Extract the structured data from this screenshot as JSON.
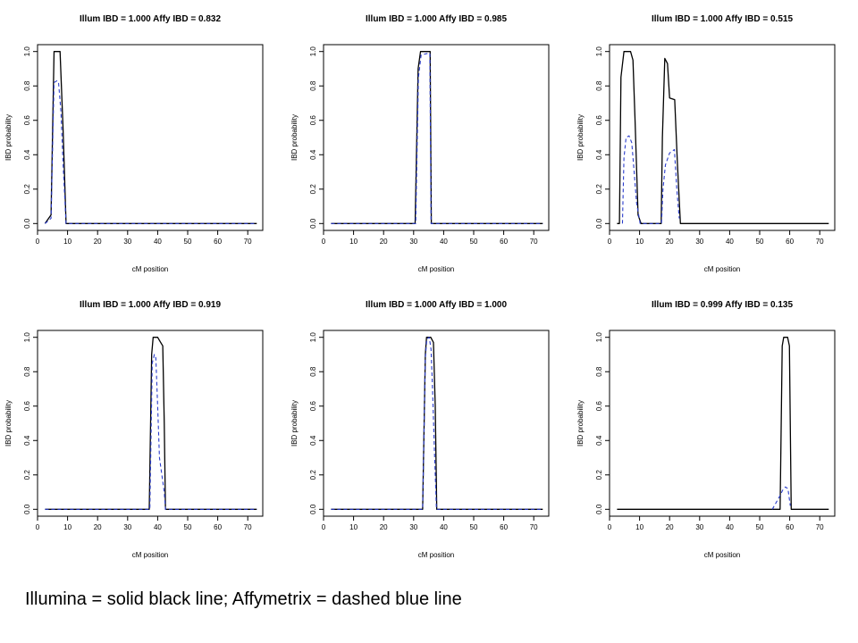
{
  "chart_data": [
    {
      "type": "line",
      "title": "Illum IBD = 1.000   Affy IBD = 0.832",
      "xlabel": "cM position",
      "ylabel": "IBD probability",
      "xlim": [
        0,
        75
      ],
      "ylim": [
        0,
        1
      ],
      "xticks": [
        "0",
        "10",
        "20",
        "30",
        "40",
        "50",
        "60",
        "70"
      ],
      "yticks": [
        "0.0",
        "0.2",
        "0.4",
        "0.6",
        "0.8",
        "1.0"
      ],
      "series": [
        {
          "style": "solid",
          "color": "#000000",
          "x": [
            2.5,
            4.5,
            5.5,
            6.5,
            7.5,
            8.5,
            9.5,
            10.5,
            73
          ],
          "y": [
            0,
            0.05,
            1.0,
            1.0,
            1.0,
            0.55,
            0,
            0,
            0
          ]
        },
        {
          "style": "dashed",
          "color": "#2a3ccc",
          "x": [
            2.5,
            4.5,
            5.5,
            6.5,
            7.0,
            7.8,
            8.5,
            9.5,
            10.5,
            73
          ],
          "y": [
            0,
            0.03,
            0.82,
            0.83,
            0.82,
            0.65,
            0.35,
            0,
            0,
            0
          ]
        }
      ]
    },
    {
      "type": "line",
      "title": "Illum IBD = 1.000   Affy IBD = 0.985",
      "xlabel": "cM position",
      "ylabel": "IBD probability",
      "xlim": [
        0,
        75
      ],
      "ylim": [
        0,
        1
      ],
      "xticks": [
        "0",
        "10",
        "20",
        "30",
        "40",
        "50",
        "60",
        "70"
      ],
      "yticks": [
        "0.0",
        "0.2",
        "0.4",
        "0.6",
        "0.8",
        "1.0"
      ],
      "series": [
        {
          "style": "solid",
          "color": "#000000",
          "x": [
            2.5,
            30.5,
            31.5,
            32.3,
            34.8,
            35.5,
            35.9,
            73
          ],
          "y": [
            0,
            0,
            0.9,
            1.0,
            1.0,
            1.0,
            0,
            0
          ]
        },
        {
          "style": "dashed",
          "color": "#2a3ccc",
          "x": [
            2.5,
            30.7,
            31.6,
            32.5,
            34.8,
            35.4,
            35.8,
            73
          ],
          "y": [
            0,
            0,
            0.85,
            0.98,
            0.99,
            0.99,
            0,
            0
          ]
        }
      ]
    },
    {
      "type": "line",
      "title": "Illum IBD = 1.000   Affy IBD = 0.515",
      "xlabel": "cM position",
      "ylabel": "IBD probability",
      "xlim": [
        0,
        75
      ],
      "ylim": [
        0,
        1
      ],
      "xticks": [
        "0",
        "10",
        "20",
        "30",
        "40",
        "50",
        "60",
        "70"
      ],
      "yticks": [
        "0.0",
        "0.2",
        "0.4",
        "0.6",
        "0.8",
        "1.0"
      ],
      "series": [
        {
          "style": "solid",
          "color": "#000000",
          "x": [
            2.5,
            3.3,
            3.8,
            4.8,
            7.0,
            7.8,
            8.5,
            9.5,
            10.5,
            17.2,
            17.6,
            18.4,
            19.3,
            20.0,
            21.7,
            22.6,
            23.6,
            73
          ],
          "y": [
            0,
            0,
            0.85,
            1.0,
            1.0,
            0.95,
            0.6,
            0.05,
            0,
            0,
            0.5,
            0.96,
            0.93,
            0.73,
            0.72,
            0.35,
            0,
            0
          ]
        },
        {
          "style": "dashed",
          "color": "#2a3ccc",
          "x": [
            4.3,
            4.8,
            5.5,
            6.5,
            7.4,
            8.2,
            9.0,
            10.2,
            17.3,
            17.8,
            18.6,
            20.0,
            21.6,
            22.4,
            23.2
          ],
          "y": [
            0,
            0.38,
            0.5,
            0.51,
            0.47,
            0.3,
            0.12,
            0,
            0,
            0.2,
            0.34,
            0.41,
            0.43,
            0.2,
            0.03
          ]
        }
      ]
    },
    {
      "type": "line",
      "title": "Illum IBD = 1.000   Affy IBD = 0.919",
      "xlabel": "cM position",
      "ylabel": "IBD probability",
      "xlim": [
        0,
        75
      ],
      "ylim": [
        0,
        1
      ],
      "xticks": [
        "0",
        "10",
        "20",
        "30",
        "40",
        "50",
        "60",
        "70"
      ],
      "yticks": [
        "0.0",
        "0.2",
        "0.4",
        "0.6",
        "0.8",
        "1.0"
      ],
      "series": [
        {
          "style": "solid",
          "color": "#000000",
          "x": [
            2.5,
            37.2,
            38.0,
            38.5,
            40.0,
            41.0,
            41.7,
            42.2,
            42.6,
            73
          ],
          "y": [
            0,
            0,
            0.9,
            1.0,
            1.0,
            0.97,
            0.95,
            0.5,
            0,
            0
          ]
        },
        {
          "style": "dashed",
          "color": "#2a3ccc",
          "x": [
            2.5,
            37.4,
            38.2,
            38.9,
            39.4,
            40.0,
            40.6,
            41.4,
            42.2,
            42.6,
            73
          ],
          "y": [
            0,
            0,
            0.85,
            0.9,
            0.88,
            0.6,
            0.3,
            0.2,
            0.1,
            0,
            0
          ]
        }
      ]
    },
    {
      "type": "line",
      "title": "Illum IBD = 1.000   Affy IBD = 1.000",
      "xlabel": "cM position",
      "ylabel": "IBD probability",
      "xlim": [
        0,
        75
      ],
      "ylim": [
        0,
        1
      ],
      "xticks": [
        "0",
        "10",
        "20",
        "30",
        "40",
        "50",
        "60",
        "70"
      ],
      "yticks": [
        "0.0",
        "0.2",
        "0.4",
        "0.6",
        "0.8",
        "1.0"
      ],
      "series": [
        {
          "style": "solid",
          "color": "#000000",
          "x": [
            2.5,
            33.0,
            33.9,
            34.3,
            35.7,
            36.6,
            37.2,
            37.7,
            73
          ],
          "y": [
            0,
            0,
            0.9,
            1.0,
            1.0,
            0.97,
            0.6,
            0,
            0
          ]
        },
        {
          "style": "dashed",
          "color": "#2a3ccc",
          "x": [
            2.5,
            33.0,
            33.9,
            34.4,
            35.2,
            35.8,
            36.3,
            37.0,
            37.6,
            73
          ],
          "y": [
            0,
            0,
            0.88,
            0.99,
            1.0,
            0.93,
            0.7,
            0.3,
            0,
            0
          ]
        }
      ]
    },
    {
      "type": "line",
      "title": "Illum IBD = 0.999   Affy IBD = 0.135",
      "xlabel": "cM position",
      "ylabel": "IBD probability",
      "xlim": [
        0,
        75
      ],
      "ylim": [
        0,
        1
      ],
      "xticks": [
        "0",
        "10",
        "20",
        "30",
        "40",
        "50",
        "60",
        "70"
      ],
      "yticks": [
        "0.0",
        "0.2",
        "0.4",
        "0.6",
        "0.8",
        "1.0"
      ],
      "series": [
        {
          "style": "solid",
          "color": "#000000",
          "x": [
            2.5,
            56.8,
            57.5,
            58.0,
            59.3,
            59.9,
            60.5,
            73
          ],
          "y": [
            0,
            0,
            0.95,
            1.0,
            1.0,
            0.95,
            0,
            0
          ]
        },
        {
          "style": "dashed",
          "color": "#2a3ccc",
          "x": [
            54.2,
            55.5,
            56.8,
            57.6,
            58.6,
            59.4,
            60.2
          ],
          "y": [
            0,
            0.04,
            0.08,
            0.11,
            0.13,
            0.12,
            0.02
          ]
        }
      ]
    }
  ],
  "caption": "Illumina = solid black line; Affymetrix = dashed blue line"
}
